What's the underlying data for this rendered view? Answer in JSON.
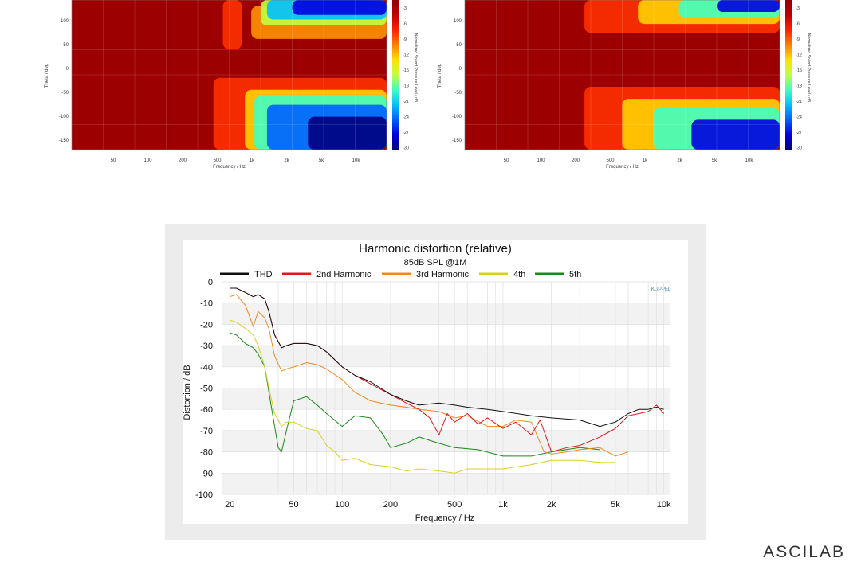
{
  "colors": {
    "map_scale": [
      "#00007f",
      "#0000e0",
      "#0060ff",
      "#00c0ff",
      "#40ffc0",
      "#c0ff40",
      "#ffe000",
      "#ff8000",
      "#ff2000",
      "#c00000",
      "#900000"
    ],
    "thd": "#111111",
    "h2": "#e01818",
    "h3": "#f08a20",
    "h4": "#d8d020",
    "h5": "#1a8a1a"
  },
  "directivity_maps": [
    {
      "yaxis_label": "Theta / deg",
      "xaxis_label": "Frequency / Hz",
      "colorbar_label": "Normalized Sound Pressure Level / dB",
      "ytick_labels": [
        "100",
        "50",
        "0",
        "-50",
        "-100",
        "-150"
      ],
      "xtick_labels": [
        "50",
        "100",
        "200",
        "500",
        "1k",
        "2k",
        "5k",
        "10k"
      ],
      "colorbar_ticks": [
        "-3",
        "-6",
        "-9",
        "-12",
        "-15",
        "-18",
        "-21",
        "-24",
        "-27",
        "-30"
      ]
    },
    {
      "yaxis_label": "Theta / deg",
      "xaxis_label": "Frequency / Hz",
      "colorbar_label": "Normalized Sound Pressure Level / dB",
      "ytick_labels": [
        "100",
        "50",
        "0",
        "-50",
        "-100",
        "-150"
      ],
      "xtick_labels": [
        "50",
        "100",
        "200",
        "500",
        "1k",
        "2k",
        "5k",
        "10k"
      ],
      "colorbar_ticks": [
        "-3",
        "-6",
        "-9",
        "-12",
        "-15",
        "-18",
        "-21",
        "-24",
        "-27",
        "-30"
      ]
    }
  ],
  "chart_data": {
    "type": "line",
    "title": "Harmonic distortion (relative)",
    "subtitle": "85dB SPL @1M",
    "xlabel": "Frequency / Hz",
    "ylabel": "Distortion / dB",
    "xscale": "log",
    "xlim": [
      18,
      11000
    ],
    "ylim": [
      -100,
      0
    ],
    "xtick_labels": [
      "20",
      "50",
      "100",
      "200",
      "500",
      "1k",
      "2k",
      "5k",
      "10k"
    ],
    "xtick_values": [
      20,
      50,
      100,
      200,
      500,
      1000,
      2000,
      5000,
      10000
    ],
    "ytick_values": [
      0,
      -10,
      -20,
      -30,
      -40,
      -50,
      -60,
      -70,
      -80,
      -90,
      -100
    ],
    "legend_position": "top",
    "watermark": "KLIPPEL",
    "series": [
      {
        "name": "THD",
        "color": "#111111",
        "x": [
          20,
          22,
          25,
          28,
          30,
          33,
          35,
          38,
          42,
          45,
          50,
          60,
          70,
          80,
          100,
          120,
          150,
          200,
          250,
          300,
          400,
          500,
          600,
          800,
          1000,
          1500,
          2000,
          3000,
          4000,
          5000,
          6000,
          7000,
          8000,
          9000,
          10000
        ],
        "y": [
          -3,
          -3,
          -5,
          -7,
          -6,
          -8,
          -14,
          -25,
          -31,
          -30,
          -29,
          -29,
          -30,
          -33,
          -40,
          -44,
          -47,
          -53,
          -56,
          -58,
          -57,
          -58,
          -59,
          -60,
          -61,
          -63,
          -64,
          -65,
          -68,
          -66,
          -62,
          -60,
          -60,
          -59,
          -60
        ]
      },
      {
        "name": "2nd Harmonic",
        "color": "#e01818",
        "x": [
          20,
          22,
          25,
          28,
          30,
          33,
          35,
          38,
          42,
          45,
          50,
          60,
          70,
          80,
          100,
          120,
          150,
          200,
          250,
          300,
          350,
          400,
          450,
          500,
          600,
          700,
          800,
          1000,
          1200,
          1500,
          1700,
          2000,
          2500,
          3000,
          4000,
          5000,
          6000,
          7000,
          8000,
          9000,
          10000
        ],
        "y": [
          -3,
          -3,
          -5,
          -7,
          -6,
          -8,
          -14,
          -25,
          -31,
          -30,
          -29,
          -29,
          -30,
          -33,
          -40,
          -44,
          -48,
          -53,
          -57,
          -60,
          -64,
          -72,
          -62,
          -66,
          -62,
          -67,
          -64,
          -69,
          -66,
          -72,
          -65,
          -80,
          -78,
          -77,
          -73,
          -69,
          -63,
          -62,
          -61,
          -58,
          -62
        ]
      },
      {
        "name": "3rd Harmonic",
        "color": "#f08a20",
        "x": [
          20,
          22,
          25,
          28,
          30,
          33,
          35,
          38,
          42,
          45,
          50,
          60,
          70,
          80,
          100,
          120,
          150,
          200,
          250,
          300,
          400,
          500,
          600,
          800,
          1000,
          1200,
          1500,
          1800,
          2000,
          2500,
          3000,
          4000,
          5000,
          6000
        ],
        "y": [
          -7,
          -6,
          -11,
          -21,
          -14,
          -17,
          -22,
          -35,
          -42,
          -41,
          -40,
          -38,
          -39,
          -41,
          -46,
          -52,
          -56,
          -58,
          -59,
          -60,
          -61,
          -64,
          -63,
          -68,
          -68,
          -65,
          -66,
          -80,
          -81,
          -80,
          -79,
          -78,
          -82,
          -80
        ]
      },
      {
        "name": "4th",
        "color": "#d8d020",
        "x": [
          20,
          22,
          25,
          28,
          30,
          33,
          35,
          38,
          42,
          45,
          50,
          60,
          70,
          80,
          90,
          100,
          120,
          150,
          200,
          250,
          300,
          400,
          500,
          600,
          800,
          1000,
          1500,
          2000,
          3000,
          4000,
          5000
        ],
        "y": [
          -18,
          -19,
          -22,
          -25,
          -30,
          -40,
          -50,
          -62,
          -68,
          -66,
          -66,
          -69,
          -70,
          -77,
          -80,
          -84,
          -83,
          -86,
          -87,
          -89,
          -88,
          -89,
          -90,
          -88,
          -88,
          -88,
          -86,
          -84,
          -84,
          -85,
          -85
        ]
      },
      {
        "name": "5th",
        "color": "#1a8a1a",
        "x": [
          20,
          22,
          25,
          28,
          30,
          33,
          35,
          38,
          40,
          42,
          45,
          50,
          60,
          70,
          80,
          100,
          120,
          150,
          180,
          200,
          250,
          300,
          400,
          500,
          700,
          1000,
          1500,
          2000,
          3000,
          4000
        ],
        "y": [
          -24,
          -25,
          -29,
          -31,
          -34,
          -40,
          -52,
          -68,
          -78,
          -80,
          -70,
          -56,
          -54,
          -58,
          -62,
          -68,
          -63,
          -64,
          -72,
          -78,
          -76,
          -73,
          -76,
          -78,
          -79,
          -82,
          -82,
          -80,
          -78,
          -79
        ]
      }
    ]
  },
  "brand": {
    "logo_text": "ASCILAB"
  }
}
